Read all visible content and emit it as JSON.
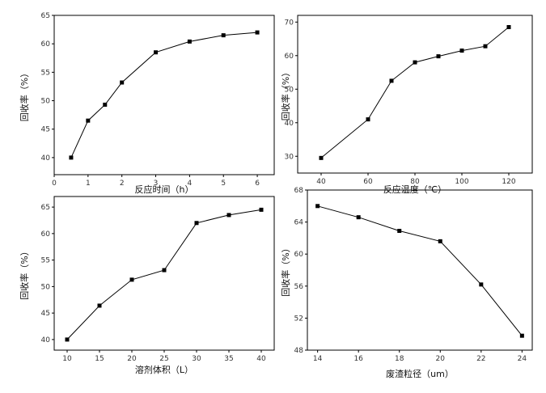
{
  "chart_data": [
    {
      "type": "line",
      "xlabel": "反应时间（h）",
      "ylabel": "回收率（%）",
      "xlim": [
        0,
        6.5
      ],
      "ylim": [
        37,
        65
      ],
      "x_ticks": [
        0,
        1,
        2,
        3,
        4,
        5,
        6
      ],
      "y_ticks": [
        40,
        45,
        50,
        55,
        60,
        65
      ],
      "x": [
        0.5,
        1,
        1.5,
        2,
        3,
        4,
        5,
        6
      ],
      "y": [
        40.0,
        46.5,
        49.3,
        53.2,
        58.5,
        60.4,
        61.5,
        62.0
      ],
      "marker": "square",
      "line_color": "#000000"
    },
    {
      "type": "line",
      "xlabel": "反应温度（℃）",
      "ylabel": "回收率（%）",
      "xlim": [
        30,
        130
      ],
      "ylim": [
        25,
        72
      ],
      "x_ticks": [
        40,
        60,
        80,
        100,
        120
      ],
      "y_ticks": [
        30,
        40,
        50,
        60,
        70
      ],
      "x": [
        40,
        60,
        70,
        80,
        90,
        100,
        110,
        120
      ],
      "y": [
        29.5,
        41.0,
        52.5,
        58.0,
        59.8,
        61.5,
        62.8,
        68.5
      ],
      "marker": "square",
      "line_color": "#000000"
    },
    {
      "type": "line",
      "xlabel": "溶剂体积（L）",
      "ylabel": "回收率（%）",
      "xlim": [
        8,
        42
      ],
      "ylim": [
        38,
        67
      ],
      "x_ticks": [
        10,
        15,
        20,
        25,
        30,
        35,
        40
      ],
      "y_ticks": [
        40,
        45,
        50,
        55,
        60,
        65
      ],
      "x": [
        10,
        15,
        20,
        25,
        30,
        35,
        40
      ],
      "y": [
        40.0,
        46.4,
        51.3,
        53.1,
        62.0,
        63.5,
        64.5
      ],
      "marker": "square",
      "line_color": "#000000"
    },
    {
      "type": "line",
      "xlabel": "废渣粒径（um）",
      "ylabel": "回收率（%）",
      "xlim": [
        13.5,
        24.5
      ],
      "ylim": [
        48,
        68
      ],
      "x_ticks": [
        14,
        16,
        18,
        20,
        22,
        24
      ],
      "y_ticks": [
        48,
        52,
        56,
        60,
        64,
        68
      ],
      "x": [
        14,
        16,
        18,
        20,
        22,
        24
      ],
      "y": [
        66.0,
        64.6,
        62.9,
        61.6,
        56.2,
        49.8
      ],
      "marker": "square",
      "line_color": "#000000"
    }
  ]
}
